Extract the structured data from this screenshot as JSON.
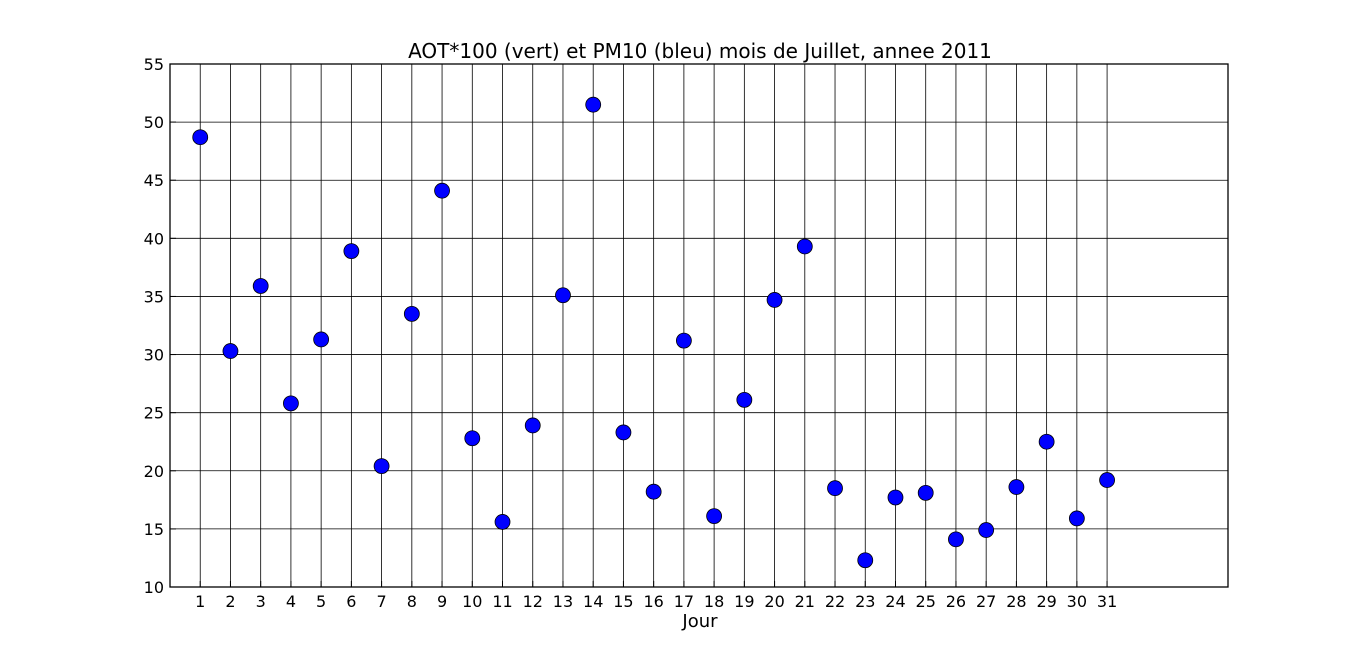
{
  "chart_data": {
    "type": "scatter",
    "title": "AOT*100 (vert) et PM10 (bleu) mois de Juillet, annee 2011",
    "xlabel": "Jour",
    "ylabel": "",
    "xlim": [
      0,
      35
    ],
    "ylim": [
      10,
      55
    ],
    "x_ticks": [
      1,
      2,
      3,
      4,
      5,
      6,
      7,
      8,
      9,
      10,
      11,
      12,
      13,
      14,
      15,
      16,
      17,
      18,
      19,
      20,
      21,
      22,
      23,
      24,
      25,
      26,
      27,
      28,
      29,
      30,
      31
    ],
    "y_ticks": [
      10,
      15,
      20,
      25,
      30,
      35,
      40,
      45,
      50,
      55
    ],
    "grid": true,
    "marker_color": "#0000ff",
    "series": [
      {
        "x": [
          1,
          2,
          3,
          4,
          5,
          6,
          7,
          8,
          9,
          10,
          11,
          12,
          13,
          14,
          15,
          16,
          17,
          18,
          19,
          20,
          21,
          22,
          23,
          24,
          25,
          26,
          27,
          28,
          29,
          30,
          31
        ],
        "y": [
          48.7,
          30.3,
          35.9,
          25.8,
          31.3,
          38.9,
          20.4,
          33.5,
          44.1,
          22.8,
          15.6,
          23.9,
          35.1,
          51.5,
          23.3,
          18.2,
          31.2,
          16.1,
          26.1,
          34.7,
          39.3,
          18.5,
          12.3,
          17.7,
          18.1,
          14.1,
          14.9,
          18.6,
          22.5,
          15.9,
          19.2
        ]
      }
    ]
  }
}
